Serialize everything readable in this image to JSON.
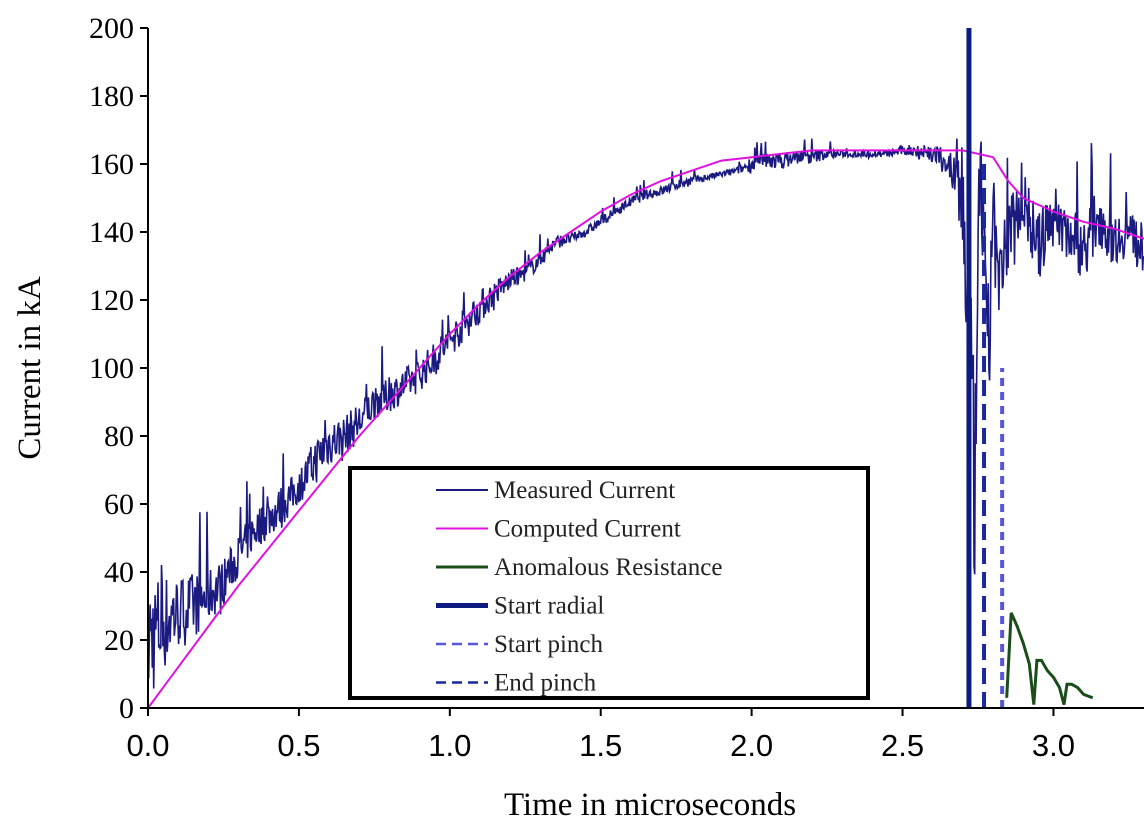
{
  "chart_data": {
    "type": "line",
    "title": "",
    "xlabel": "Time in microseconds",
    "ylabel": "Current in kA",
    "xlim": [
      0,
      3.3
    ],
    "ylim": [
      0,
      200
    ],
    "x_ticks": [
      "0.0",
      "0.5",
      "1.0",
      "1.5",
      "2.0",
      "2.5",
      "3.0"
    ],
    "y_ticks": [
      "0",
      "20",
      "40",
      "60",
      "80",
      "100",
      "120",
      "140",
      "160",
      "180",
      "200"
    ],
    "grid": false,
    "legend_position": "bottom-center",
    "series": [
      {
        "name": "Measured Current",
        "color": "#1a1a80",
        "style": "noisy-solid",
        "x": [
          0.0,
          0.05,
          0.1,
          0.15,
          0.2,
          0.25,
          0.3,
          0.35,
          0.4,
          0.45,
          0.5,
          0.55,
          0.6,
          0.65,
          0.7,
          0.75,
          0.8,
          0.85,
          0.9,
          0.95,
          1.0,
          1.05,
          1.1,
          1.15,
          1.2,
          1.25,
          1.3,
          1.35,
          1.4,
          1.45,
          1.5,
          1.55,
          1.6,
          1.65,
          1.7,
          1.75,
          1.8,
          1.85,
          1.9,
          1.95,
          2.0,
          2.05,
          2.1,
          2.15,
          2.2,
          2.25,
          2.3,
          2.35,
          2.4,
          2.45,
          2.5,
          2.55,
          2.6,
          2.65,
          2.7,
          2.72,
          2.74,
          2.76,
          2.78,
          2.8,
          2.82,
          2.85,
          2.9,
          2.95,
          3.0,
          3.05,
          3.1,
          3.15,
          3.2,
          3.25,
          3.3
        ],
        "y": [
          20,
          25,
          28,
          30,
          33,
          37,
          45,
          52,
          56,
          60,
          65,
          72,
          78,
          80,
          84,
          90,
          92,
          95,
          98,
          103,
          108,
          113,
          118,
          122,
          126,
          128,
          132,
          137,
          138,
          140,
          143,
          146,
          149,
          151,
          152,
          154,
          155,
          156,
          157,
          158,
          160,
          161,
          161,
          162,
          162,
          163,
          163,
          163,
          163,
          163,
          164,
          164,
          163,
          160,
          150,
          110,
          60,
          170,
          90,
          150,
          120,
          140,
          150,
          135,
          145,
          140,
          135,
          145,
          138,
          140,
          135
        ],
        "noise": [
          40,
          30,
          22,
          20,
          16,
          14,
          12,
          12,
          12,
          12,
          10,
          14,
          14,
          12,
          12,
          10,
          10,
          10,
          10,
          10,
          10,
          10,
          10,
          8,
          6,
          5,
          5,
          4,
          3,
          3,
          3,
          3,
          3,
          3,
          3,
          3,
          3,
          2,
          2,
          2,
          5,
          5,
          5,
          4,
          4,
          3,
          2,
          2,
          2,
          2,
          3,
          5,
          6,
          8,
          40,
          60,
          60,
          60,
          50,
          40,
          30,
          22,
          20,
          20,
          20,
          18,
          18,
          18,
          16,
          14,
          14
        ]
      },
      {
        "name": "Computed Current",
        "color": "#e010e0",
        "style": "solid",
        "x": [
          0.0,
          0.1,
          0.2,
          0.3,
          0.4,
          0.5,
          0.6,
          0.7,
          0.8,
          0.9,
          1.0,
          1.1,
          1.2,
          1.3,
          1.4,
          1.5,
          1.6,
          1.7,
          1.8,
          1.9,
          2.0,
          2.1,
          2.2,
          2.3,
          2.4,
          2.5,
          2.6,
          2.7,
          2.75,
          2.8,
          2.85,
          2.9,
          3.0,
          3.1,
          3.2,
          3.3
        ],
        "y": [
          0,
          12,
          24,
          36,
          47,
          58,
          69,
          80,
          90,
          100,
          110,
          119,
          127,
          134,
          140,
          146,
          151,
          155,
          158,
          161,
          162,
          163,
          164,
          164,
          164,
          164,
          164,
          164,
          163,
          162,
          155,
          150,
          146,
          143,
          141,
          138
        ]
      },
      {
        "name": "Anomalous Resistance",
        "color": "#1a4d1a",
        "style": "solid",
        "x": [
          2.845,
          2.86,
          2.88,
          2.9,
          2.92,
          2.935,
          2.945,
          2.96,
          2.98,
          3.0,
          3.02,
          3.035,
          3.045,
          3.06,
          3.08,
          3.1,
          3.13
        ],
        "y": [
          3,
          28,
          24,
          19,
          13,
          1,
          14,
          14,
          11,
          9,
          6,
          1,
          7,
          7,
          6,
          4,
          3
        ]
      },
      {
        "name": "Start radial",
        "color": "#0d1a80",
        "style": "thick-vertical",
        "x": [
          2.72,
          2.72
        ],
        "y": [
          0,
          200
        ]
      },
      {
        "name": "Start pinch",
        "color": "#5555dd",
        "style": "dashed-vertical",
        "x": [
          2.83,
          2.83
        ],
        "y": [
          0,
          100
        ]
      },
      {
        "name": "End pinch",
        "color": "#1a2a99",
        "style": "dashed-vertical",
        "x": [
          2.77,
          2.77
        ],
        "y": [
          0,
          160
        ]
      }
    ]
  }
}
